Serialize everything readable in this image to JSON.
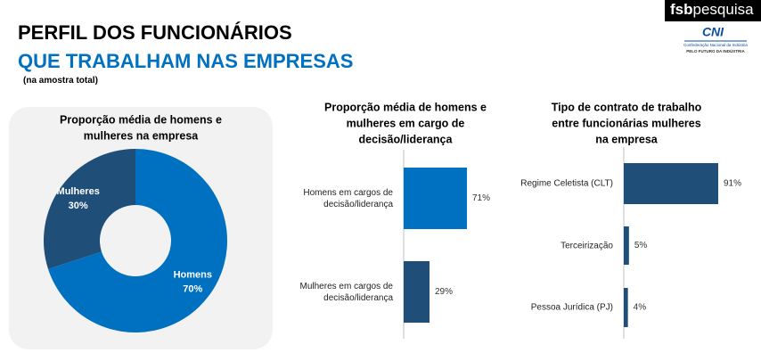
{
  "header": {
    "title_line1": "PERFIL DOS FUNCIONÁRIOS",
    "title_line2": "QUE TRABALHAM NAS EMPRESAS",
    "note": "(na amostra total)"
  },
  "logo": {
    "brand_bold": "fsb",
    "brand_light": "pesquisa",
    "cni": "CNI",
    "cni_name": "Confederação Nacional da Indústria",
    "cni_tagline": "PELO FUTURO DA INDÚSTRIA"
  },
  "chart_data": [
    {
      "type": "donut",
      "title": [
        "Proporção média de homens e",
        "mulheres na empresa"
      ],
      "categories": [
        "Homens",
        "Mulheres"
      ],
      "values": [
        70,
        30
      ],
      "value_labels": [
        "70%",
        "30%"
      ],
      "colors": [
        "#0070c0",
        "#1f4e79"
      ]
    },
    {
      "type": "hbar",
      "title": [
        "Proporção média de homens e",
        "mulheres em cargo de",
        "decisão/liderança"
      ],
      "categories": [
        "Homens em cargos de decisão/liderança",
        "Mulheres em cargos de decisão/liderança"
      ],
      "values": [
        71,
        29
      ],
      "value_labels": [
        "71%",
        "29%"
      ],
      "colors": [
        "#0070c0",
        "#1f4e79"
      ]
    },
    {
      "type": "hbar",
      "title": [
        "Tipo de contrato de trabalho",
        "entre funcionárias mulheres",
        "na empresa"
      ],
      "categories": [
        "Regime Celetista (CLT)",
        "Terceirização",
        "Pessoa Jurídica (PJ)"
      ],
      "values": [
        91,
        5,
        4
      ],
      "value_labels": [
        "91%",
        "5%",
        "4%"
      ],
      "colors": [
        "#1f4e79",
        "#1f4e79",
        "#1f4e79"
      ]
    }
  ]
}
